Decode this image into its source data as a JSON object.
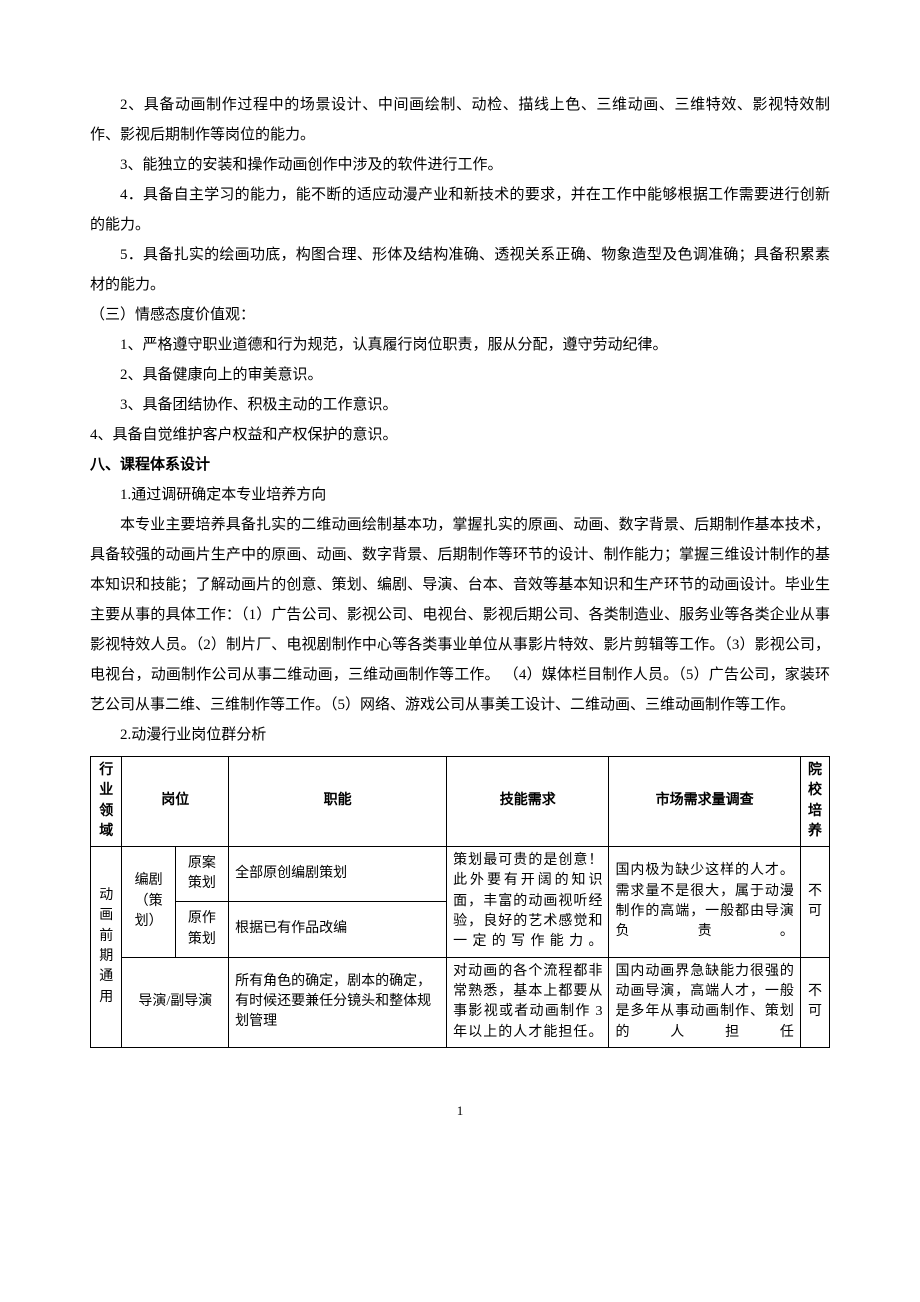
{
  "p1": "2、具备动画制作过程中的场景设计、中间画绘制、动检、描线上色、三维动画、三维特效、影视特效制作、影视后期制作等岗位的能力。",
  "p2": "3、能独立的安装和操作动画创作中涉及的软件进行工作。",
  "p3": "4．具备自主学习的能力，能不断的适应动漫产业和新技术的要求，并在工作中能够根据工作需要进行创新的能力。",
  "p4": "5．具备扎实的绘画功底，构图合理、形体及结构准确、透视关系正确、物象造型及色调准确；具备积累素材的能力。",
  "h3": "（三）情感态度价值观：",
  "p5": "1、严格遵守职业道德和行为规范，认真履行岗位职责，服从分配，遵守劳动纪律。",
  "p6": "2、具备健康向上的审美意识。",
  "p7": "3、具备团结协作、积极主动的工作意识。",
  "p8": "4、具备自觉维护客户权益和产权保护的意识。",
  "h8": "八、课程体系设计",
  "p9": "1.通过调研确定本专业培养方向",
  "p10": "本专业主要培养具备扎实的二维动画绘制基本功，掌握扎实的原画、动画、数字背景、后期制作基本技术，具备较强的动画片生产中的原画、动画、数字背景、后期制作等环节的设计、制作能力；掌握三维设计制作的基本知识和技能；了解动画片的创意、策划、编剧、导演、台本、音效等基本知识和生产环节的动画设计。毕业生主要从事的具体工作：（1）广告公司、影视公司、电视台、影视后期公司、各类制造业、服务业等各类企业从事影视特效人员。（2）制片厂、电视剧制作中心等各类事业单位从事影片特效、影片剪辑等工作。（3）影视公司，电视台，动画制作公司从事二维动画，三维动画制作等工作。 （4）媒体栏目制作人员。（5）广告公司，家装环艺公司从事二维、三维制作等工作。（5）网络、游戏公司从事美工设计、二维动画、三维动画制作等工作。",
  "p11": "2.动漫行业岗位群分析",
  "table": {
    "headers": {
      "industry": "行业领域",
      "position": "岗位",
      "function": "职能",
      "skill": "技能需求",
      "market": "市场需求量调查",
      "school": "院校培养"
    },
    "col1": "动画前期通用",
    "r1": {
      "pos1": "编剧（策划）",
      "pos2a": "原案策划",
      "pos2b": "原作策划",
      "funcA": "全部原创编剧策划",
      "funcB": "根据已有作品改编",
      "skill": "策划最可贵的是创意！此外要有开阔的知识面，丰富的动画视听经验，良好的艺术感觉和一定的写作能力。",
      "market": "国内极为缺少这样的人才。需求量不是很大，属于动漫制作的高端，一般都由导演负责。",
      "school": "不可"
    },
    "r2": {
      "pos": "导演/副导演",
      "func": "所有角色的确定，剧本的确定，有时候还要兼任分镜头和整体规划管理",
      "skill": "对动画的各个流程都非常熟悉，基本上都要从事影视或者动画制作 3 年以上的人才能担任。",
      "market": "国内动画界急缺能力很强的动画导演，高端人才，一般是多年从事动画制作、策划的人担任",
      "school": "不可"
    }
  },
  "page": "1"
}
